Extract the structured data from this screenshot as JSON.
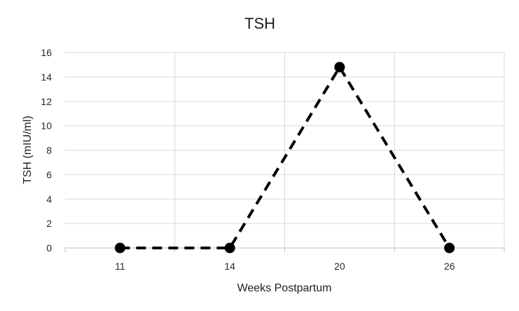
{
  "chart_data": {
    "type": "line",
    "title": "TSH",
    "xlabel": "Weeks Postpartum",
    "ylabel": "TSH (mIU/ml)",
    "categories": [
      "11",
      "14",
      "20",
      "26"
    ],
    "ylim": [
      0,
      16
    ],
    "yticks": [
      "0",
      "2",
      "4",
      "6",
      "8",
      "10",
      "12",
      "14",
      "16"
    ],
    "grid": true,
    "line_style": "dashed",
    "marker": "circle",
    "series": [
      {
        "values": [
          0,
          0,
          14.8,
          0
        ],
        "color": "#000000"
      }
    ]
  }
}
